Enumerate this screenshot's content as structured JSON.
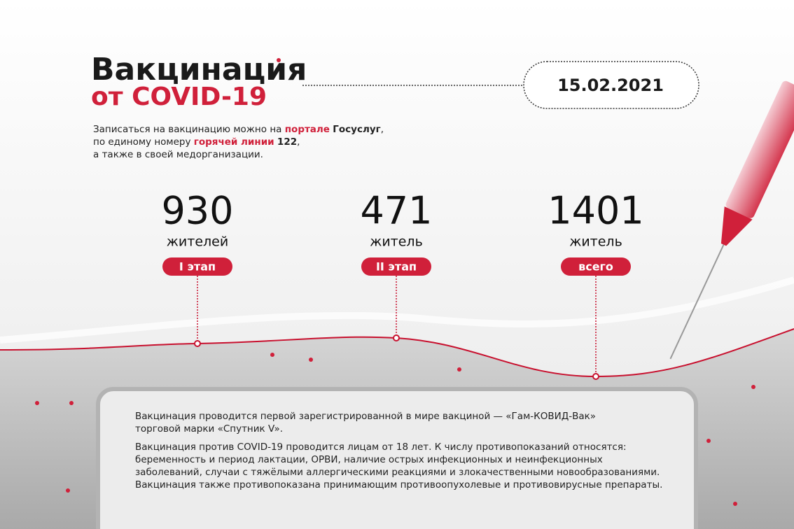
{
  "header": {
    "title": "Вакцинация",
    "subtitle": "от COVID-19",
    "date": "15.02.2021"
  },
  "intro": {
    "lines": [
      [
        {
          "text": "Записаться на вакцинацию можно на "
        },
        {
          "text": "портале",
          "color": "#d0203a",
          "weight": "bold"
        },
        {
          "text": " "
        },
        {
          "text": "Госуслуг",
          "weight": "bold"
        },
        {
          "text": ","
        }
      ],
      [
        {
          "text": "по единому номеру "
        },
        {
          "text": "горячей линии",
          "color": "#d0203a",
          "weight": "bold"
        },
        {
          "text": " "
        },
        {
          "text": "122",
          "weight": "bold"
        },
        {
          "text": ","
        }
      ],
      [
        {
          "text": "а также в своей медорганизации."
        }
      ]
    ]
  },
  "stats": [
    {
      "number": "930",
      "unit": "жителей",
      "label": "I этап"
    },
    {
      "number": "471",
      "unit": "житель",
      "label": "II этап"
    },
    {
      "number": "1401",
      "unit": "житель",
      "label": "всего"
    }
  ],
  "info": {
    "paragraphs": [
      [
        "Вакцинация проводится первой зарегистрированной в мире вакциной — «Гам-КОВИД-Вак»",
        "торговой марки «Спутник V»."
      ],
      [
        "Вакцинация против COVID-19 проводится лицам от 18 лет. К числу противопоказаний относятся:",
        "беременность и период лактации, ОРВИ, наличие острых инфекционных и неинфекционных",
        "заболеваний, случаи с тяжёлыми аллергическими реакциями и злокачественными новообразованиями.",
        "Вакцинация также противопоказана принимающим противоопухолевые и противовирусные препараты."
      ]
    ]
  }
}
